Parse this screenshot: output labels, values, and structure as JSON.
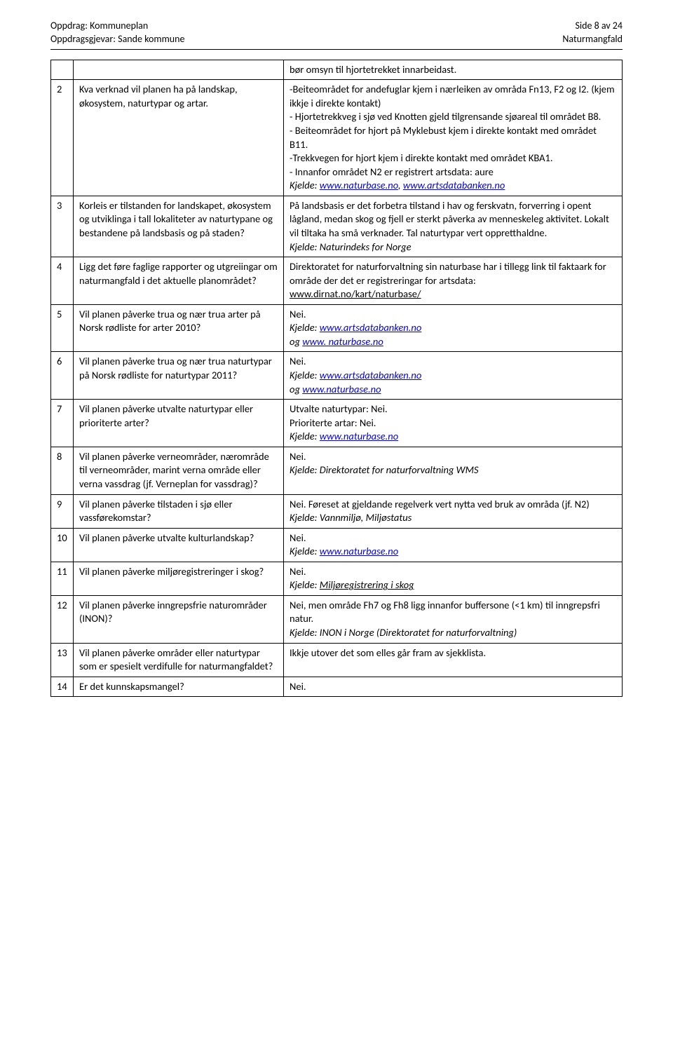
{
  "header": {
    "left1": "Oppdrag: Kommuneplan",
    "left2": "Oppdragsgjevar: Sande kommune",
    "right1": "Side 8 av 24",
    "right2": "Naturmangfald"
  },
  "intro": "bør omsyn til hjortetrekket innarbeidast.",
  "rows": [
    {
      "n": "2",
      "q": "Kva verknad vil planen ha på landskap, økosystem, naturtypar og artar.",
      "a_parts": [
        {
          "t": "-Beiteområdet for andefuglar kjem i nærleiken av områda Fn13, F2 og I2. (kjem ikkje i direkte kontakt)"
        },
        {
          "t": "- Hjortetrekkveg i sjø ved Knotten gjeld tilgrensande sjøareal til området B8."
        },
        {
          "t": "- Beiteområdet for hjort på Myklebust kjem i direkte kontakt med området B11."
        },
        {
          "t": "-Trekkvegen for hjort kjem i direkte kontakt med området KBA1."
        },
        {
          "t": "- Innanfor området N2 er registrert artsdata: aure"
        },
        {
          "t": "Kjelde: www.naturbase.no,  www.artsdatabanken.no",
          "ital": true,
          "links": [
            "www.naturbase.no",
            "www.artsdatabanken.no"
          ]
        }
      ]
    },
    {
      "n": "3",
      "q": "Korleis er tilstanden for landskapet, økosystem og utviklinga i tall lokaliteter av naturtypane og bestandene på landsbasis og på staden?",
      "a_parts": [
        {
          "t": "På landsbasis er det forbetra tilstand i hav og ferskvatn, forverring i opent lågland, medan skog og fjell er sterkt påverka av menneskeleg aktivitet. Lokalt vil tiltaka ha små verknader. Tal naturtypar vert oppretthaldne."
        },
        {
          "t": "Kjelde: Naturindeks for Norge",
          "ital": true
        }
      ]
    },
    {
      "n": "4",
      "q": "Ligg det føre faglige rapporter og utgreiingar om naturmangfald i det aktuelle planområdet?",
      "a_parts": [
        {
          "t": "Direktoratet for naturforvaltning sin naturbase har i tillegg link til faktaark for område der det er registreringar for artsdata:"
        },
        {
          "t": "www.dirnat.no/kart/naturbase/",
          "underline": true
        }
      ]
    },
    {
      "n": "5",
      "q": "Vil planen påverke trua og nær trua arter på Norsk rødliste for arter 2010?",
      "a_parts": [
        {
          "t": "Nei."
        },
        {
          "t": "Kjelde: www.artsdatabanken.no",
          "ital": true,
          "links": [
            "www.artsdatabanken.no"
          ]
        },
        {
          "t": "og www. naturbase.no",
          "ital": true,
          "links": [
            "www. naturbase.no"
          ]
        }
      ]
    },
    {
      "n": "6",
      "q": "Vil planen påverke trua og nær trua naturtypar på Norsk rødliste for naturtypar 2011?",
      "a_parts": [
        {
          "t": "Nei."
        },
        {
          "t": "Kjelde: www.artsdatabanken.no",
          "ital": true,
          "links": [
            "www.artsdatabanken.no"
          ]
        },
        {
          "t": "og www.naturbase.no",
          "ital": true,
          "links": [
            "www.naturbase.no"
          ]
        }
      ]
    },
    {
      "n": "7",
      "q": "Vil planen påverke utvalte naturtypar eller prioriterte arter?",
      "a_parts": [
        {
          "t": "Utvalte naturtypar: Nei."
        },
        {
          "t": "Prioriterte artar: Nei."
        },
        {
          "t": "Kjelde: www.naturbase.no",
          "ital": true,
          "links": [
            "www.naturbase.no"
          ]
        }
      ]
    },
    {
      "n": "8",
      "q": "Vil planen påverke verneområder, nærområde til verneområder, marint verna område eller verna vassdrag (jf. Verneplan for vassdrag)?",
      "a_parts": [
        {
          "t": "Nei."
        },
        {
          "t": "Kjelde: Direktoratet for naturforvaltning WMS",
          "ital": true
        }
      ]
    },
    {
      "n": "9",
      "q": "Vil planen påverke tilstaden i sjø eller vassførekomstar?",
      "a_parts": [
        {
          "t": "Nei. Føreset at gjeldande regelverk vert nytta ved bruk av områda (jf. N2)"
        },
        {
          "t": "Kjelde: Vannmiljø, Miljøstatus",
          "ital": true
        }
      ]
    },
    {
      "n": "10",
      "q": "Vil planen påverke utvalte kulturlandskap?",
      "a_parts": [
        {
          "t": "Nei."
        },
        {
          "t": "Kjelde: www.naturbase.no",
          "ital": true,
          "links": [
            "www.naturbase.no"
          ]
        }
      ]
    },
    {
      "n": "11",
      "q": "Vil planen påverke miljøregistreringer i skog?",
      "a_parts": [
        {
          "t": "Nei."
        },
        {
          "t": "Kjelde: Miljøregistrering i skog",
          "ital": true,
          "underline_after_colon": true
        }
      ]
    },
    {
      "n": "12",
      "q": "Vil planen påverke inngrepsfrie naturområder (INON)?",
      "a_parts": [
        {
          "t": "Nei, men område Fh7 og Fh8 ligg innanfor buffersone (<1 km) til inngrepsfri natur."
        },
        {
          "t": "Kjelde: INON i Norge (Direktoratet for naturforvaltning)",
          "ital": true
        }
      ]
    },
    {
      "n": "13",
      "q": "Vil planen påverke områder eller naturtypar som er spesielt verdifulle for naturmangfaldet?",
      "a_parts": [
        {
          "t": "Ikkje utover det som elles går fram av sjekklista."
        }
      ]
    },
    {
      "n": "14",
      "q": "Er det kunnskapsmangel?",
      "a_parts": [
        {
          "t": "Nei."
        }
      ]
    }
  ]
}
